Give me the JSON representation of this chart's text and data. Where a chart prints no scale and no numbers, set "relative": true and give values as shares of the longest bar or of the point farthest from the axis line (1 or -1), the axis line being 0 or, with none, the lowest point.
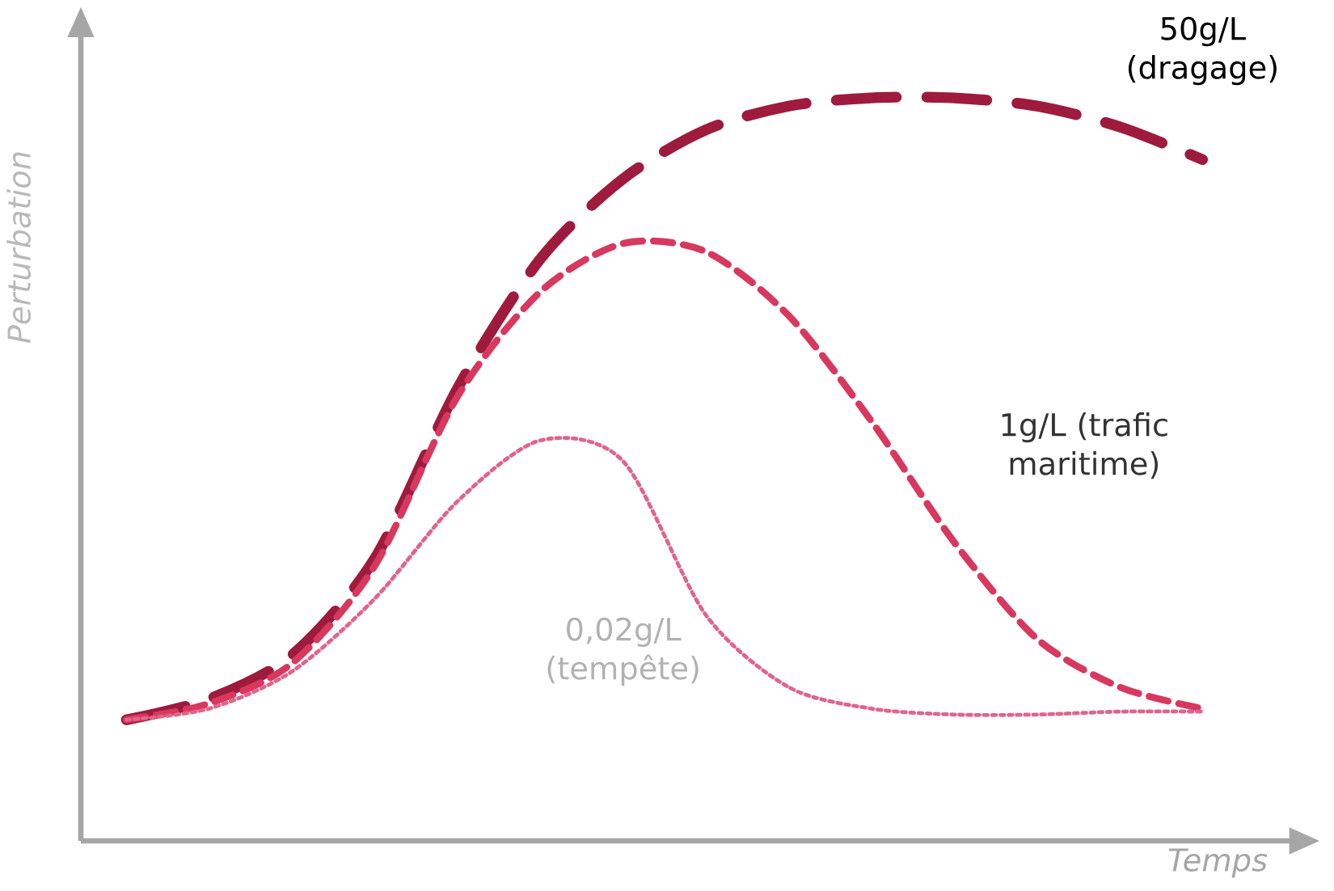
{
  "chart_data": {
    "type": "line",
    "relative": true,
    "xlabel": "Temps",
    "ylabel": "Perturbation",
    "categories": [
      null,
      null,
      null,
      null,
      null,
      null,
      null,
      null,
      null,
      null,
      null,
      null,
      null,
      null
    ],
    "series": [
      {
        "name": "50g/L (dragage)",
        "color": "#9e1b3e",
        "line_style": "dashed",
        "values": [
          0.163,
          0.191,
          0.25,
          0.38,
          0.609,
          0.783,
          0.891,
          0.957,
          0.989,
          1.0,
          1.0,
          0.989,
          0.961,
          0.917
        ]
      },
      {
        "name": "1g/L (trafic maritime)",
        "color": "#d9385e",
        "line_style": "dashed",
        "values": [
          0.163,
          0.185,
          0.239,
          0.37,
          0.598,
          0.739,
          0.804,
          0.793,
          0.707,
          0.565,
          0.402,
          0.272,
          0.207,
          0.178
        ]
      },
      {
        "name": "0,02g/L (tempête)",
        "color": "#e0648a",
        "line_style": "dotted",
        "values": [
          0.163,
          0.178,
          0.228,
          0.326,
          0.457,
          0.539,
          0.511,
          0.304,
          0.207,
          0.178,
          0.17,
          0.17,
          0.174,
          0.174
        ]
      }
    ]
  }
}
